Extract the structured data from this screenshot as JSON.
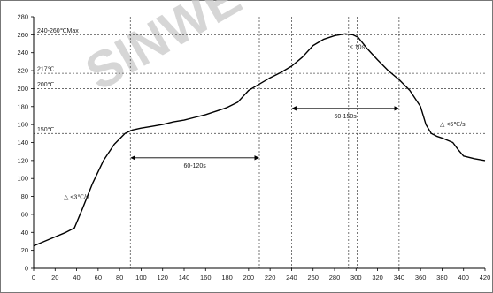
{
  "watermark": "SINWE",
  "chart_data": {
    "type": "line",
    "title": "",
    "xlabel": "",
    "ylabel": "",
    "xlim": [
      0,
      420
    ],
    "ylim": [
      0,
      280
    ],
    "x_ticks": [
      0,
      20,
      40,
      60,
      80,
      100,
      120,
      140,
      160,
      180,
      200,
      220,
      240,
      260,
      280,
      300,
      320,
      340,
      360,
      380,
      400,
      420
    ],
    "y_ticks": [
      0,
      20,
      40,
      60,
      80,
      100,
      120,
      140,
      160,
      180,
      200,
      220,
      240,
      260,
      280
    ],
    "grid": false,
    "series": [
      {
        "color": "#000000",
        "x": [
          0,
          10,
          20,
          30,
          38,
          45,
          55,
          65,
          75,
          85,
          92,
          100,
          110,
          120,
          130,
          140,
          150,
          160,
          170,
          180,
          190,
          200,
          210,
          220,
          230,
          240,
          250,
          260,
          270,
          280,
          290,
          297,
          302,
          310,
          320,
          330,
          340,
          350,
          360,
          365,
          370,
          375,
          380,
          390,
          395,
          400,
          410,
          420
        ],
        "y": [
          25,
          30,
          35,
          40,
          45,
          65,
          95,
          120,
          138,
          150,
          154,
          156,
          158,
          160,
          163,
          165,
          168,
          171,
          175,
          179,
          185,
          198,
          205,
          212,
          218,
          225,
          235,
          248,
          255,
          259,
          261,
          260,
          257,
          245,
          232,
          220,
          210,
          198,
          180,
          160,
          150,
          147,
          145,
          140,
          132,
          125,
          122,
          120
        ]
      }
    ],
    "reference_lines": [
      {
        "axis": "y",
        "value": 260,
        "label": "240-260℃Max"
      },
      {
        "axis": "y",
        "value": 217,
        "label": "217℃"
      },
      {
        "axis": "y",
        "value": 200,
        "label": "200℃"
      },
      {
        "axis": "y",
        "value": 150,
        "label": "150℃"
      },
      {
        "axis": "x",
        "value": 90
      },
      {
        "axis": "x",
        "value": 210
      },
      {
        "axis": "x",
        "value": 240
      },
      {
        "axis": "x",
        "value": 340
      },
      {
        "axis": "x",
        "value": 293
      },
      {
        "axis": "x",
        "value": 301
      }
    ],
    "spans": [
      {
        "from": 90,
        "to": 210,
        "y": 123,
        "label": "60-120s"
      },
      {
        "from": 240,
        "to": 340,
        "y": 178,
        "label": "60-150s"
      }
    ],
    "annotations": [
      {
        "text": "△ <3℃/s",
        "x": 28,
        "y": 77
      },
      {
        "text": "△ <6℃/s",
        "x": 378,
        "y": 158
      },
      {
        "text": "≤ 10s",
        "x": 294,
        "y": 244
      }
    ]
  }
}
